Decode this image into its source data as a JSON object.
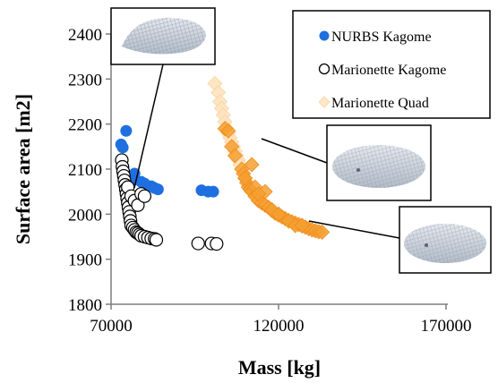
{
  "chart_data": {
    "type": "scatter",
    "title": "",
    "xlabel": "Mass [kg]",
    "ylabel": "Surface area [m2]",
    "xlim": [
      70000,
      170000
    ],
    "ylim": [
      1800,
      2400
    ],
    "xticks": [
      70000,
      120000,
      170000
    ],
    "xtick_labels": [
      "70000",
      "120000",
      "170000"
    ],
    "yticks": [
      1800,
      1900,
      2000,
      2100,
      2200,
      2300,
      2400
    ],
    "ytick_labels": [
      "1800",
      "1900",
      "2000",
      "2100",
      "2200",
      "2300",
      "2400"
    ],
    "grid": false,
    "legend_position": "top-right",
    "series": [
      {
        "name": "NURBS Kagome",
        "marker": "filled-circle",
        "color": "#1f6fe0",
        "points": [
          [
            73000,
            2155
          ],
          [
            73500,
            2148
          ],
          [
            74500,
            2185
          ],
          [
            76500,
            2075
          ],
          [
            77000,
            2090
          ],
          [
            79000,
            2072
          ],
          [
            80000,
            2068
          ],
          [
            82000,
            2062
          ],
          [
            83000,
            2058
          ],
          [
            84000,
            2055
          ],
          [
            97000,
            2053
          ],
          [
            99000,
            2050
          ],
          [
            100500,
            2050
          ]
        ]
      },
      {
        "name": "Marionette Kagome",
        "marker": "open-circle",
        "color": "#000000",
        "points": [
          [
            73200,
            2120
          ],
          [
            73400,
            2105
          ],
          [
            73600,
            2095
          ],
          [
            73800,
            2085
          ],
          [
            74000,
            2075
          ],
          [
            74200,
            2065
          ],
          [
            74400,
            2055
          ],
          [
            74600,
            2045
          ],
          [
            74800,
            2035
          ],
          [
            75000,
            2025
          ],
          [
            75200,
            2015
          ],
          [
            75400,
            2005
          ],
          [
            75600,
            1995
          ],
          [
            75800,
            1985
          ],
          [
            76000,
            1975
          ],
          [
            76500,
            1970
          ],
          [
            77000,
            1965
          ],
          [
            77500,
            1960
          ],
          [
            78000,
            1958
          ],
          [
            78500,
            1955
          ],
          [
            79000,
            1952
          ],
          [
            80000,
            1950
          ],
          [
            81000,
            1948
          ],
          [
            82000,
            1946
          ],
          [
            83000,
            1945
          ],
          [
            83500,
            1943
          ],
          [
            75000,
            2060
          ],
          [
            76000,
            2040
          ],
          [
            77000,
            2030
          ],
          [
            78000,
            2020
          ],
          [
            79000,
            2045
          ],
          [
            80000,
            2040
          ],
          [
            96000,
            1935
          ],
          [
            100000,
            1935
          ],
          [
            101500,
            1934
          ]
        ]
      },
      {
        "name": "Marionette Quad",
        "marker": "diamond",
        "color": "#f5a032",
        "points": [
          [
            101000,
            2290
          ],
          [
            102000,
            2270
          ],
          [
            102500,
            2250
          ],
          [
            103000,
            2235
          ],
          [
            103500,
            2220
          ],
          [
            104000,
            2205
          ],
          [
            104500,
            2190
          ],
          [
            105000,
            2180
          ],
          [
            105500,
            2170
          ],
          [
            106000,
            2160
          ],
          [
            106500,
            2150
          ],
          [
            107000,
            2140
          ],
          [
            107500,
            2130
          ],
          [
            108000,
            2120
          ],
          [
            108500,
            2110
          ],
          [
            109000,
            2100
          ],
          [
            109500,
            2090
          ],
          [
            110000,
            2080
          ],
          [
            110500,
            2070
          ],
          [
            111000,
            2060
          ],
          [
            111500,
            2055
          ],
          [
            112000,
            2050
          ],
          [
            113000,
            2040
          ],
          [
            114000,
            2030
          ],
          [
            115000,
            2025
          ],
          [
            116000,
            2020
          ],
          [
            117000,
            2015
          ],
          [
            118000,
            2008
          ],
          [
            119000,
            2002
          ],
          [
            120000,
            1998
          ],
          [
            121000,
            1994
          ],
          [
            122000,
            1990
          ],
          [
            123000,
            1986
          ],
          [
            124000,
            1983
          ],
          [
            125000,
            1980
          ],
          [
            126000,
            1977
          ],
          [
            127000,
            1974
          ],
          [
            128000,
            1971
          ],
          [
            129000,
            1968
          ],
          [
            130000,
            1965
          ],
          [
            131000,
            1963
          ],
          [
            132000,
            1961
          ],
          [
            133000,
            1960
          ],
          [
            104000,
            2190
          ],
          [
            105000,
            2185
          ],
          [
            106000,
            2150
          ],
          [
            107000,
            2130
          ],
          [
            112000,
            2110
          ],
          [
            113000,
            2060
          ],
          [
            116000,
            2050
          ],
          [
            118000,
            2010
          ],
          [
            120000,
            2000
          ],
          [
            123000,
            1985
          ],
          [
            125000,
            1975
          ],
          [
            127000,
            1975
          ],
          [
            110000,
            2080
          ],
          [
            114000,
            2045
          ]
        ]
      }
    ]
  }
}
